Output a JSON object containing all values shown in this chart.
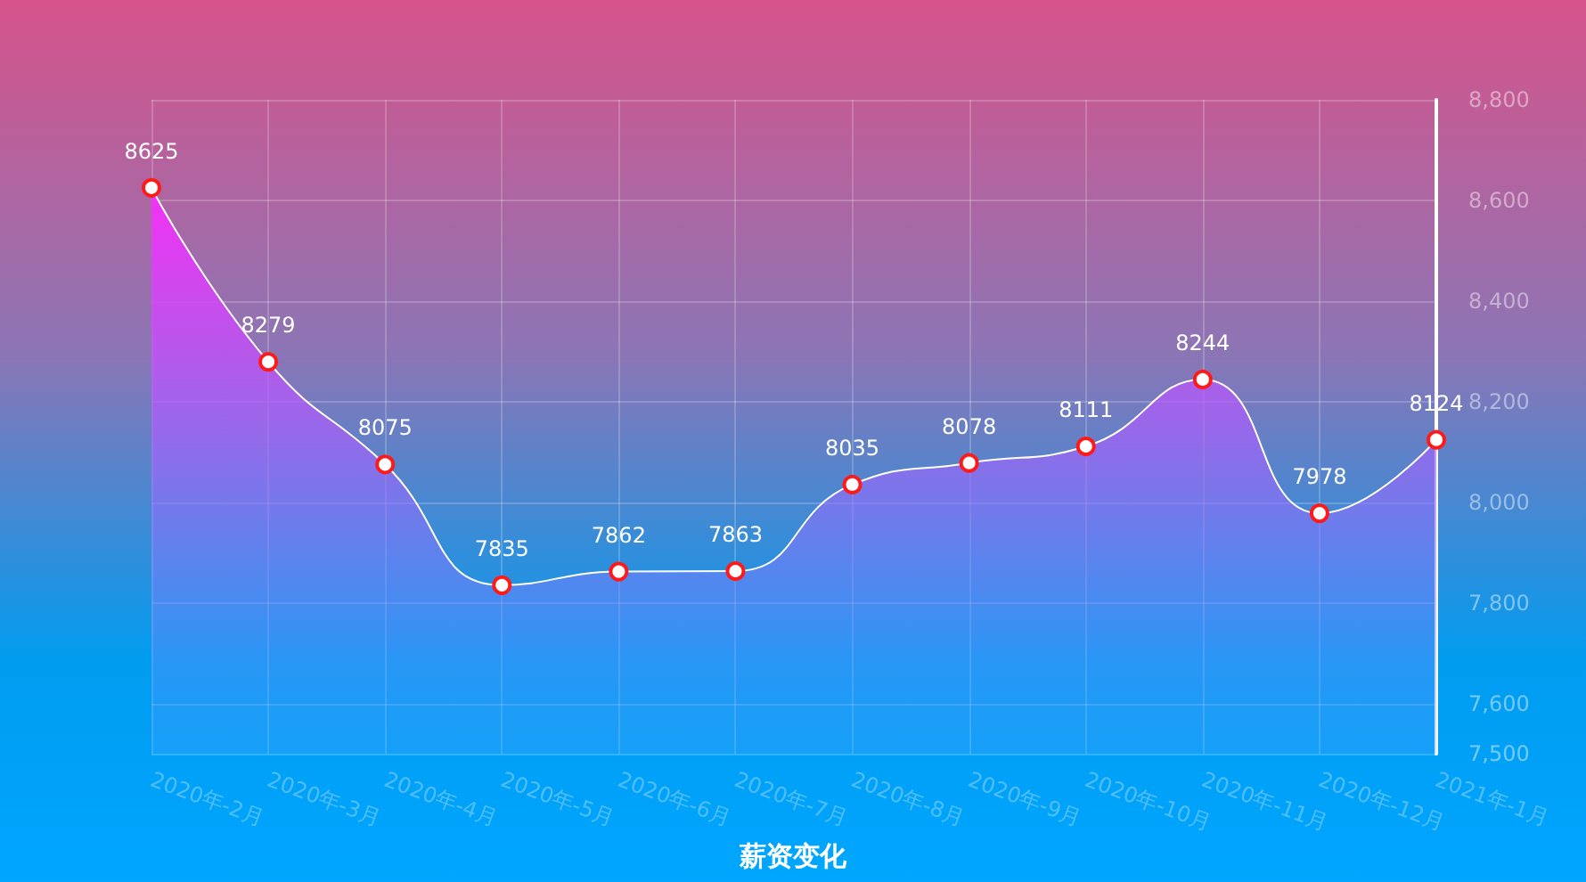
{
  "chart_data": {
    "type": "area",
    "title": "薪资变化",
    "categories": [
      "2020年-2月",
      "2020年-3月",
      "2020年-4月",
      "2020年-5月",
      "2020年-6月",
      "2020年-7月",
      "2020年-8月",
      "2020年-9月",
      "2020年-10月",
      "2020年-11月",
      "2020年-12月",
      "2021年-1月"
    ],
    "series": [
      {
        "color": "#ffffff",
        "values": [
          8625,
          8279,
          8075,
          7835,
          7862,
          7863,
          8035,
          8078,
          8111,
          8244,
          7978,
          8124
        ]
      }
    ],
    "ylim": [
      7500,
      8800
    ],
    "yticks": [
      {
        "value": 7500,
        "label": "7,500"
      },
      {
        "value": 7600,
        "label": "7,600"
      },
      {
        "value": 7800,
        "label": "7,800"
      },
      {
        "value": 8000,
        "label": "8,000"
      },
      {
        "value": 8200,
        "label": "8,200"
      },
      {
        "value": 8400,
        "label": "8,400"
      },
      {
        "value": 8600,
        "label": "8,600"
      },
      {
        "value": 8800,
        "label": "8,800"
      }
    ],
    "grid": true,
    "data_labels": true,
    "marker": "circle",
    "line_style": "solid"
  }
}
